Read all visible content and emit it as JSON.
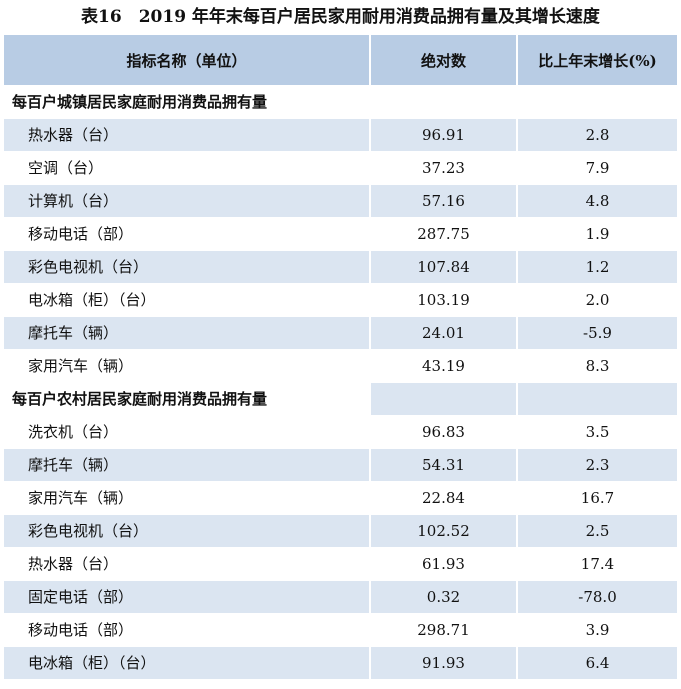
{
  "title": "表16　2019 年年末每百户居民家用耐用消费品拥有量及其增长速度",
  "headers": {
    "name": "指标名称（单位）",
    "value": "绝对数",
    "growth": "比上年末增长(%)"
  },
  "urban": {
    "label": "每百户城镇居民家庭耐用消费品拥有量",
    "rows": [
      {
        "name": "热水器（台）",
        "value": "96.91",
        "growth": "2.8"
      },
      {
        "name": "空调（台）",
        "value": "37.23",
        "growth": "7.9"
      },
      {
        "name": "计算机（台）",
        "value": "57.16",
        "growth": "4.8"
      },
      {
        "name": "移动电话（部）",
        "value": "287.75",
        "growth": "1.9"
      },
      {
        "name": "彩色电视机（台）",
        "value": "107.84",
        "growth": "1.2"
      },
      {
        "name": "电冰箱（柜）（台）",
        "value": "103.19",
        "growth": "2.0"
      },
      {
        "name": "摩托车（辆）",
        "value": "24.01",
        "growth": "-5.9"
      },
      {
        "name": "家用汽车（辆）",
        "value": "43.19",
        "growth": "8.3"
      }
    ]
  },
  "rural": {
    "label": "每百户农村居民家庭耐用消费品拥有量",
    "rows": [
      {
        "name": "洗衣机（台）",
        "value": "96.83",
        "growth": "3.5"
      },
      {
        "name": "摩托车（辆）",
        "value": "54.31",
        "growth": "2.3"
      },
      {
        "name": "家用汽车（辆）",
        "value": "22.84",
        "growth": "16.7"
      },
      {
        "name": "彩色电视机（台）",
        "value": "102.52",
        "growth": "2.5"
      },
      {
        "name": "热水器（台）",
        "value": "61.93",
        "growth": "17.4"
      },
      {
        "name": "固定电话（部）",
        "value": "0.32",
        "growth": "-78.0"
      },
      {
        "name": "移动电话（部）",
        "value": "298.71",
        "growth": "3.9"
      },
      {
        "name": "电冰箱（柜）（台）",
        "value": "91.93",
        "growth": "6.4"
      }
    ]
  }
}
